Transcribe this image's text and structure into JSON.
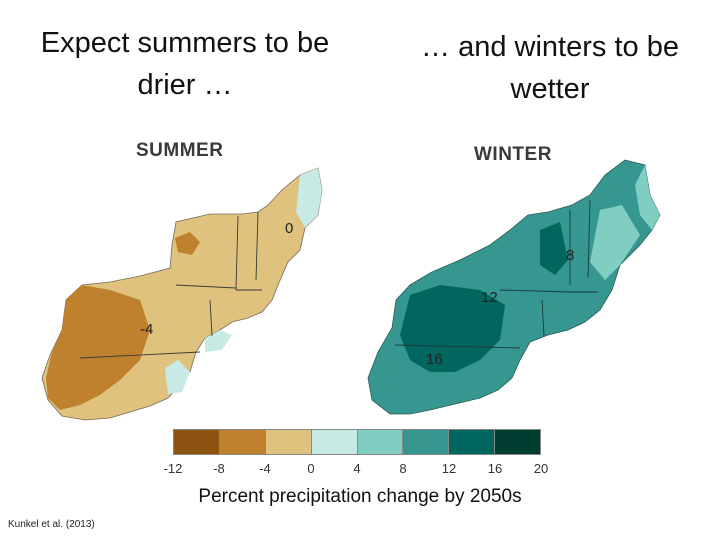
{
  "headlines": {
    "left": "Expect summers to be drier …",
    "right": "… and winters to be wetter"
  },
  "maps": {
    "summer": {
      "title": "SUMMER",
      "labels": [
        "0",
        "-4"
      ]
    },
    "winter": {
      "title": "WINTER",
      "labels": [
        "8",
        "12",
        "16"
      ]
    }
  },
  "legend": {
    "title": "Percent precipitation change by 2050s",
    "ticks": [
      "-12",
      "-8",
      "-4",
      "0",
      "4",
      "8",
      "12",
      "16",
      "20"
    ],
    "colors": [
      "#8c5410",
      "#bf812d",
      "#dfc27d",
      "#c7eae5",
      "#80cdc1",
      "#35978f",
      "#01665e",
      "#003c30"
    ]
  },
  "credit": "Kunkel et al. (2013)"
}
